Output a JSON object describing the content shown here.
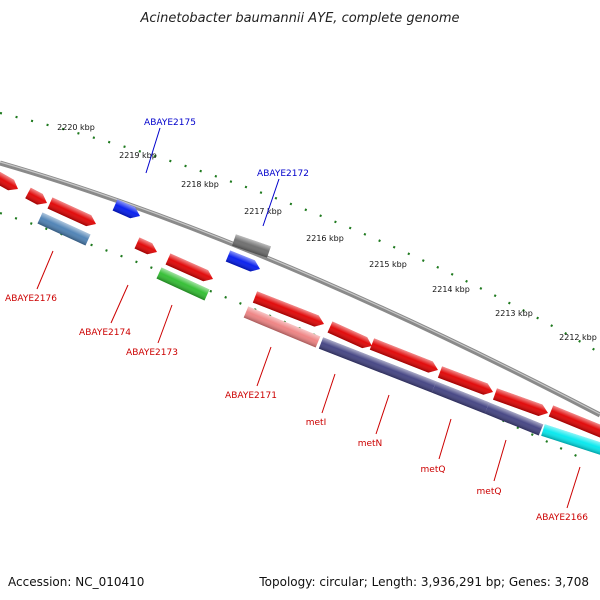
{
  "title": "Acinetobacter baumannii AYE, complete genome",
  "footer": {
    "accession": "Accession: NC_010410",
    "topology": "Topology: circular; Length: 3,936,291 bp; Genes: 3,708"
  },
  "ticks": [
    "2220 kbp",
    "2219 kbp",
    "2218 kbp",
    "2217 kbp",
    "2216 kbp",
    "2215 kbp",
    "2214 kbp",
    "2213 kbp",
    "2212 kbp"
  ],
  "labels_top": [
    "ABAYE2175",
    "ABAYE2172"
  ],
  "labels_bottom": [
    "ABAYE2176",
    "ABAYE2174",
    "ABAYE2173",
    "ABAYE2171",
    "metI",
    "metN",
    "metQ",
    "metQ",
    "ABAYE2166"
  ],
  "colors": {
    "red": "#e00000",
    "blue": "#0018ee",
    "gray": "#6b6b6b",
    "steelblue": "#4a7fb3",
    "green": "#2fbd2f",
    "salmon": "#ee8080",
    "navy": "#404080",
    "cyan": "#00e8ee",
    "backbone": "#8c8c8c",
    "tick": "#1f7a1f",
    "label_blue": "#0000cc",
    "label_red": "#cc0000"
  }
}
